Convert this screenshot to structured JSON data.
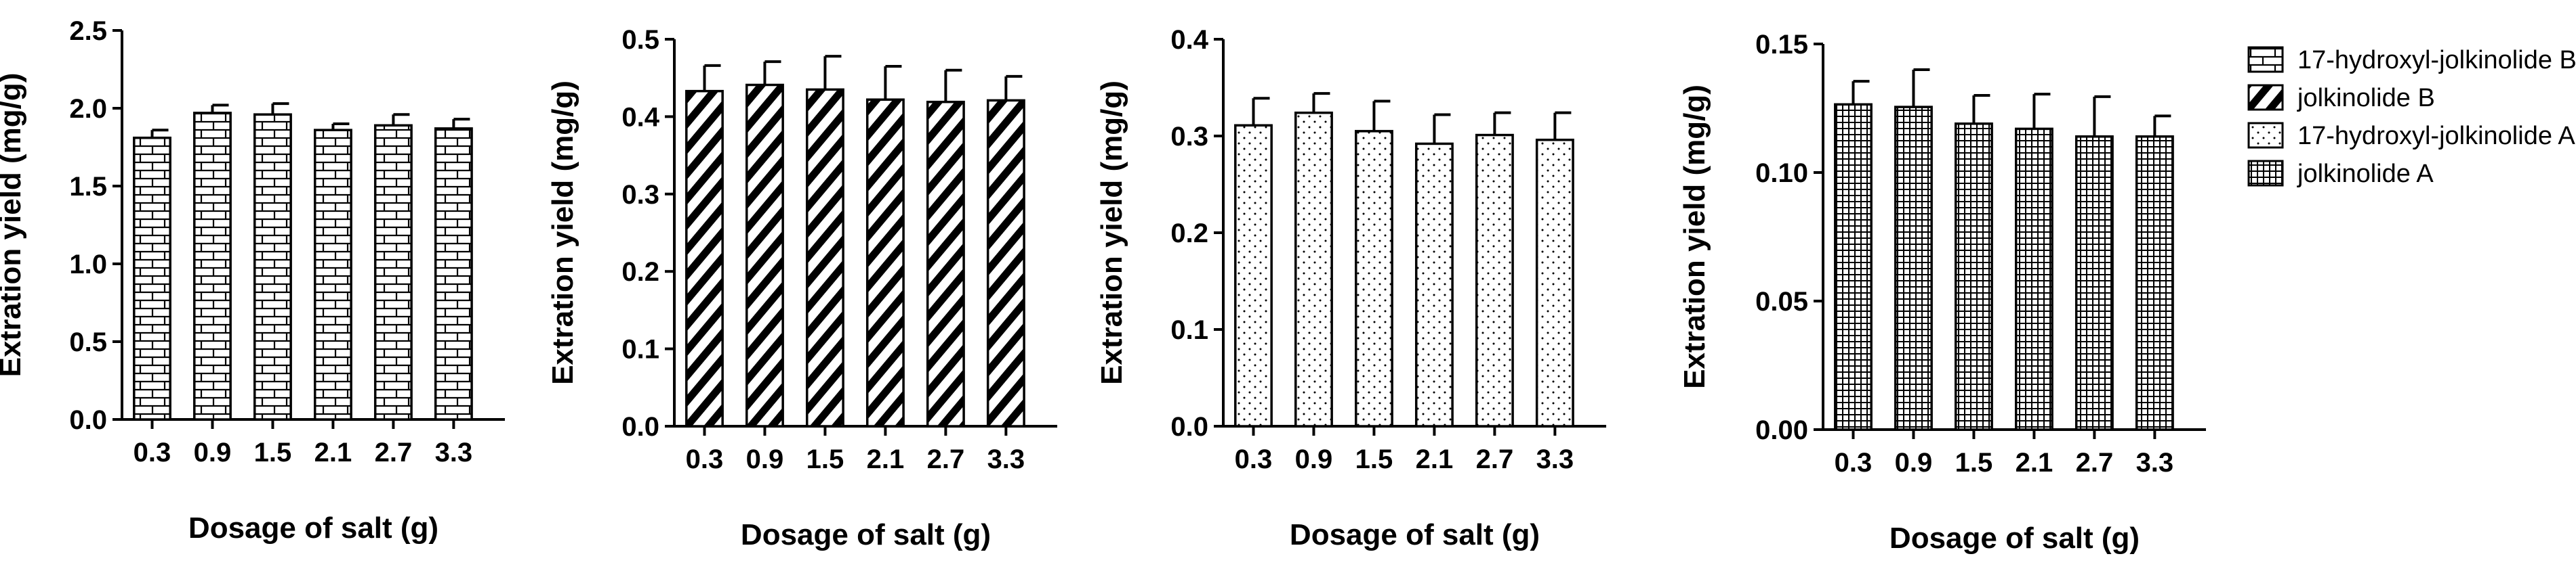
{
  "chart_data": [
    {
      "type": "bar",
      "series_name": "17-hydroxyl-jolkinolide B",
      "pattern": "brick",
      "categories": [
        "0.3",
        "0.9",
        "1.5",
        "2.1",
        "2.7",
        "3.3"
      ],
      "values": [
        1.81,
        1.97,
        1.96,
        1.86,
        1.89,
        1.87
      ],
      "errors": [
        0.05,
        0.05,
        0.07,
        0.04,
        0.07,
        0.06
      ],
      "yticks": [
        "0.0",
        "0.5",
        "1.0",
        "1.5",
        "2.0",
        "2.5"
      ],
      "ylim": [
        0,
        2.5
      ],
      "xlabel": "Dosage of salt (g)",
      "ylabel": "Extration yield  (mg/g)"
    },
    {
      "type": "bar",
      "series_name": "jolkinolide B",
      "pattern": "diagonal",
      "categories": [
        "0.3",
        "0.9",
        "1.5",
        "2.1",
        "2.7",
        "3.3"
      ],
      "values": [
        0.433,
        0.441,
        0.435,
        0.422,
        0.419,
        0.421
      ],
      "errors": [
        0.033,
        0.03,
        0.043,
        0.043,
        0.041,
        0.031
      ],
      "yticks": [
        "0.0",
        "0.1",
        "0.2",
        "0.3",
        "0.4",
        "0.5"
      ],
      "ylim": [
        0,
        0.5
      ],
      "xlabel": "Dosage of salt (g)",
      "ylabel": "Extration yield  (mg/g)"
    },
    {
      "type": "bar",
      "series_name": "17-hydroxyl-jolkinolide A",
      "pattern": "dots",
      "categories": [
        "0.3",
        "0.9",
        "1.5",
        "2.1",
        "2.7",
        "3.3"
      ],
      "values": [
        0.311,
        0.324,
        0.305,
        0.292,
        0.301,
        0.296
      ],
      "errors": [
        0.028,
        0.02,
        0.031,
        0.03,
        0.023,
        0.028
      ],
      "yticks": [
        "0.0",
        "0.1",
        "0.2",
        "0.3",
        "0.4"
      ],
      "ylim": [
        0,
        0.4
      ],
      "xlabel": "Dosage of salt (g)",
      "ylabel": "Extration yield  (mg/g)"
    },
    {
      "type": "bar",
      "series_name": "jolkinolide A",
      "pattern": "grid",
      "categories": [
        "0.3",
        "0.9",
        "1.5",
        "2.1",
        "2.7",
        "3.3"
      ],
      "values": [
        0.1265,
        0.1255,
        0.119,
        0.117,
        0.114,
        0.114
      ],
      "errors": [
        0.009,
        0.0145,
        0.011,
        0.0135,
        0.0155,
        0.008
      ],
      "yticks": [
        "0.00",
        "0.05",
        "0.10",
        "0.15"
      ],
      "ylim": [
        0,
        0.15
      ],
      "xlabel": "Dosage of salt (g)",
      "ylabel": "Extration yield  (mg/g)"
    }
  ],
  "legend": {
    "placement": "top-right",
    "entries": [
      {
        "label": "17-hydroxyl-jolkinolide B",
        "pattern": "brick"
      },
      {
        "label": "jolkinolide B",
        "pattern": "diagonal"
      },
      {
        "label": "17-hydroxyl-jolkinolide A",
        "pattern": "dots"
      },
      {
        "label": "jolkinolide A",
        "pattern": "grid"
      }
    ]
  },
  "colors": {
    "ink": "#000000",
    "background": "#ffffff",
    "bar_fill": "#ffffff"
  }
}
